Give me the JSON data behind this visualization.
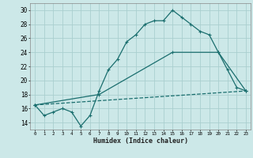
{
  "xlabel": "Humidex (Indice chaleur)",
  "bg_color": "#cce8e8",
  "grid_color": "#aacfcf",
  "line_color": "#1a6e6e",
  "xlim": [
    -0.5,
    23.5
  ],
  "ylim": [
    13.0,
    31.0
  ],
  "xticks": [
    0,
    1,
    2,
    3,
    4,
    5,
    6,
    7,
    8,
    9,
    10,
    11,
    12,
    13,
    14,
    15,
    16,
    17,
    18,
    19,
    20,
    21,
    22,
    23
  ],
  "yticks": [
    14,
    16,
    18,
    20,
    22,
    24,
    26,
    28,
    30
  ],
  "line1_x": [
    0,
    1,
    2,
    3,
    4,
    5,
    6,
    7,
    8,
    9,
    10,
    11,
    12,
    13,
    14,
    15,
    16,
    17,
    18,
    19,
    20,
    21,
    22,
    23
  ],
  "line1_y": [
    16.5,
    15.0,
    15.5,
    16.0,
    15.5,
    13.5,
    15.0,
    18.5,
    21.5,
    23.0,
    25.5,
    26.5,
    28.0,
    28.5,
    28.5,
    30.0,
    29.0,
    28.0,
    27.0,
    26.5,
    24.0,
    21.5,
    19.0,
    18.5
  ],
  "line2_x": [
    0,
    7,
    15,
    20,
    23
  ],
  "line2_y": [
    16.5,
    18.0,
    24.0,
    24.0,
    18.5
  ],
  "line3_x": [
    0,
    23
  ],
  "line3_y": [
    16.5,
    18.5
  ]
}
